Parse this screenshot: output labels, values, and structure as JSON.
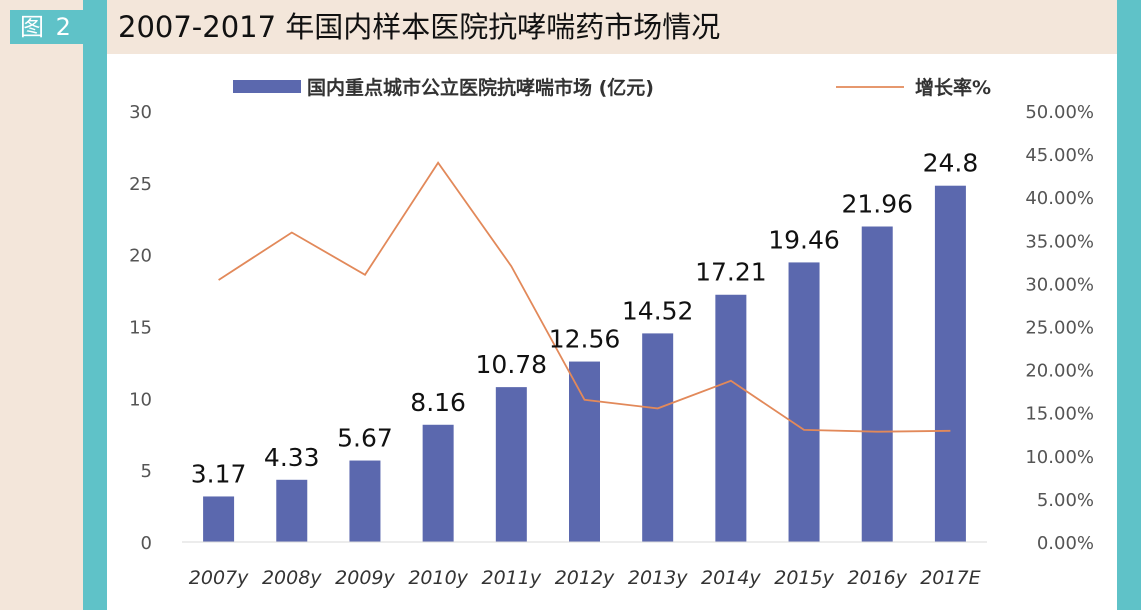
{
  "figure_label": "图 2",
  "title": "2007-2017 年国内样本医院抗哮喘药市场情况",
  "colors": {
    "background": "#f3e6da",
    "accent_teal": "#5fc2c8",
    "bar": "#5b68ae",
    "line": "#e2895a"
  },
  "chart_data": {
    "type": "bar",
    "categories": [
      "2007y",
      "2008y",
      "2009y",
      "2010y",
      "2011y",
      "2012y",
      "2013y",
      "2014y",
      "2015y",
      "2016y",
      "2017E"
    ],
    "series": [
      {
        "name": "国内重点城市公立医院抗哮喘市场 (亿元)",
        "type": "bar",
        "axis": "left",
        "values": [
          3.17,
          4.33,
          5.67,
          8.16,
          10.78,
          12.56,
          14.52,
          17.21,
          19.46,
          21.96,
          24.8
        ],
        "labels": [
          "3.17",
          "4.33",
          "5.67",
          "8.16",
          "10.78",
          "12.56",
          "14.52",
          "17.21",
          "19.46",
          "21.96",
          "24.8"
        ]
      },
      {
        "name": "增长率%",
        "type": "line",
        "axis": "right",
        "values": [
          0.304,
          0.359,
          0.31,
          0.44,
          0.32,
          0.165,
          0.155,
          0.187,
          0.13,
          0.128,
          0.129
        ]
      }
    ],
    "ylim": [
      0,
      30
    ],
    "yticks": [
      "0",
      "5",
      "10",
      "15",
      "20",
      "25",
      "30"
    ],
    "y2lim": [
      0,
      0.5
    ],
    "y2ticks": [
      "0.00%",
      "5.00%",
      "10.00%",
      "15.00%",
      "20.00%",
      "25.00%",
      "30.00%",
      "35.00%",
      "40.00%",
      "45.00%",
      "50.00%"
    ],
    "grid": false,
    "legend_position": "top"
  }
}
